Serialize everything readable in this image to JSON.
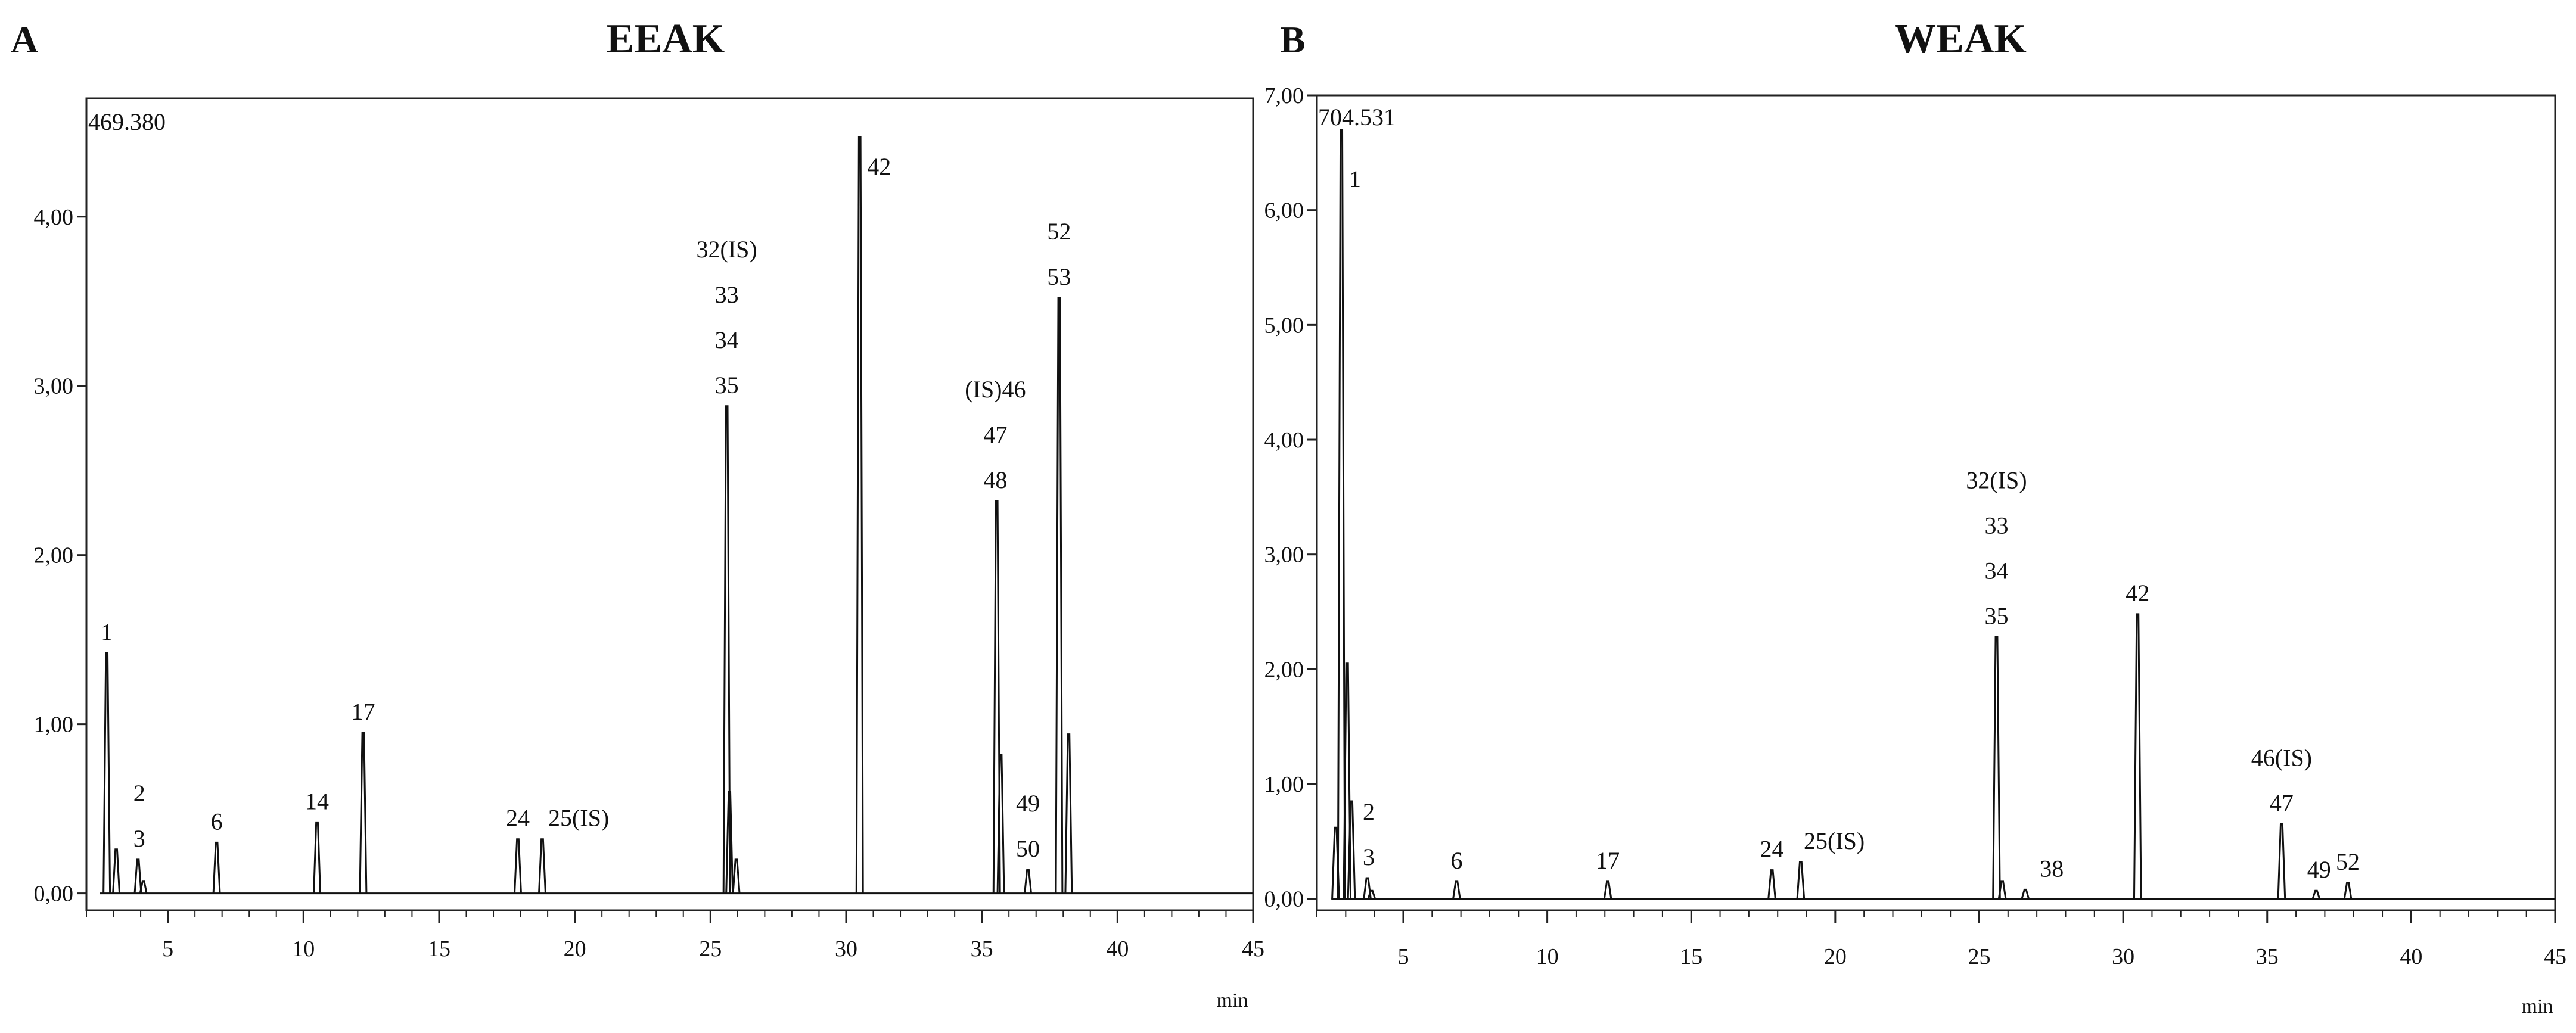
{
  "chart_data": [
    {
      "type": "line",
      "panel_label": "A",
      "title": "EEAK",
      "xlabel": "min",
      "ylabel": "",
      "xlim": [
        2,
        45
      ],
      "ylim": [
        -0.1,
        4.7
      ],
      "x_ticks": [
        "5",
        "10",
        "15",
        "20",
        "25",
        "30",
        "35",
        "40",
        "45"
      ],
      "y_ticks": [
        {
          "value": 0,
          "label": "0,00"
        },
        {
          "value": 1,
          "label": "1,00"
        },
        {
          "value": 2,
          "label": "2,00"
        },
        {
          "value": 3,
          "label": "3,00"
        },
        {
          "value": 4,
          "label": "4,00"
        }
      ],
      "corner_value": "469.380",
      "grid": false,
      "peaks": [
        {
          "x": 2.75,
          "y": 1.42
        },
        {
          "x": 3.1,
          "y": 0.26
        },
        {
          "x": 3.9,
          "y": 0.2
        },
        {
          "x": 4.1,
          "y": 0.07
        },
        {
          "x": 6.8,
          "y": 0.3
        },
        {
          "x": 10.5,
          "y": 0.42
        },
        {
          "x": 12.2,
          "y": 0.95
        },
        {
          "x": 17.9,
          "y": 0.32
        },
        {
          "x": 18.8,
          "y": 0.32
        },
        {
          "x": 25.6,
          "y": 2.88
        },
        {
          "x": 25.7,
          "y": 0.6
        },
        {
          "x": 25.95,
          "y": 0.2
        },
        {
          "x": 30.5,
          "y": 4.47
        },
        {
          "x": 35.55,
          "y": 2.32
        },
        {
          "x": 35.7,
          "y": 0.82
        },
        {
          "x": 36.7,
          "y": 0.14
        },
        {
          "x": 37.85,
          "y": 3.52
        },
        {
          "x": 38.2,
          "y": 0.94
        }
      ],
      "annotations": [
        {
          "x": 2.75,
          "y": 1.42,
          "lines": [
            "1"
          ]
        },
        {
          "x": 3.95,
          "y": 0.2,
          "lines": [
            "2",
            "3"
          ]
        },
        {
          "x": 6.8,
          "y": 0.3,
          "lines": [
            "6"
          ]
        },
        {
          "x": 10.5,
          "y": 0.42,
          "lines": [
            "14"
          ]
        },
        {
          "x": 12.2,
          "y": 0.95,
          "lines": [
            "17"
          ]
        },
        {
          "x": 17.9,
          "y": 0.32,
          "lines": [
            "24"
          ]
        },
        {
          "x": 18.8,
          "y": 0.32,
          "lines": [
            "25(IS)"
          ],
          "anchor": "start"
        },
        {
          "x": 25.6,
          "y": 2.88,
          "lines": [
            "32(IS)",
            "33",
            "34",
            "35"
          ]
        },
        {
          "x": 30.6,
          "y": 4.25,
          "lines": [
            "42"
          ],
          "anchor": "start",
          "side": true
        },
        {
          "x": 35.5,
          "y": 2.32,
          "lines": [
            "(IS)46",
            "47",
            "48"
          ]
        },
        {
          "x": 36.7,
          "y": 0.14,
          "lines": [
            "49",
            "50"
          ]
        },
        {
          "x": 37.85,
          "y": 3.52,
          "lines": [
            "52",
            "53"
          ]
        }
      ]
    },
    {
      "type": "line",
      "panel_label": "B",
      "title": "WEAK",
      "xlabel": "min",
      "ylabel": "",
      "xlim": [
        2,
        45
      ],
      "ylim": [
        -0.1,
        7.0
      ],
      "x_ticks": [
        "5",
        "10",
        "15",
        "20",
        "25",
        "30",
        "35",
        "40",
        "45"
      ],
      "y_ticks": [
        {
          "value": 0,
          "label": "0,00"
        },
        {
          "value": 1,
          "label": "1,00"
        },
        {
          "value": 2,
          "label": "2,00"
        },
        {
          "value": 3,
          "label": "3,00"
        },
        {
          "value": 4,
          "label": "4,00"
        },
        {
          "value": 5,
          "label": "5,00"
        },
        {
          "value": 6,
          "label": "6,00"
        },
        {
          "value": 7,
          "label": "7,00"
        }
      ],
      "corner_value": "704.531",
      "grid": false,
      "peaks": [
        {
          "x": 2.65,
          "y": 0.62
        },
        {
          "x": 2.85,
          "y": 6.7
        },
        {
          "x": 3.05,
          "y": 2.05
        },
        {
          "x": 3.2,
          "y": 0.85
        },
        {
          "x": 3.75,
          "y": 0.18
        },
        {
          "x": 3.9,
          "y": 0.07
        },
        {
          "x": 6.85,
          "y": 0.15
        },
        {
          "x": 12.1,
          "y": 0.15
        },
        {
          "x": 17.8,
          "y": 0.25
        },
        {
          "x": 18.8,
          "y": 0.32
        },
        {
          "x": 25.6,
          "y": 2.28
        },
        {
          "x": 25.8,
          "y": 0.15
        },
        {
          "x": 26.6,
          "y": 0.08
        },
        {
          "x": 30.5,
          "y": 2.48
        },
        {
          "x": 35.5,
          "y": 0.65
        },
        {
          "x": 36.7,
          "y": 0.07
        },
        {
          "x": 37.8,
          "y": 0.14
        }
      ],
      "annotations": [
        {
          "x": 2.95,
          "y": 6.2,
          "lines": [
            "1"
          ],
          "anchor": "start",
          "side": true
        },
        {
          "x": 3.8,
          "y": 0.18,
          "lines": [
            "2",
            "3"
          ]
        },
        {
          "x": 6.85,
          "y": 0.15,
          "lines": [
            "6"
          ]
        },
        {
          "x": 12.1,
          "y": 0.15,
          "lines": [
            "17"
          ]
        },
        {
          "x": 17.8,
          "y": 0.25,
          "lines": [
            "24"
          ]
        },
        {
          "x": 18.7,
          "y": 0.32,
          "lines": [
            "25(IS)"
          ],
          "anchor": "start"
        },
        {
          "x": 25.6,
          "y": 2.28,
          "lines": [
            "32(IS)",
            "33",
            "34",
            "35"
          ]
        },
        {
          "x": 26.9,
          "y": 0.08,
          "lines": [
            "38"
          ],
          "anchor": "start"
        },
        {
          "x": 30.5,
          "y": 2.48,
          "lines": [
            "42"
          ]
        },
        {
          "x": 35.5,
          "y": 0.65,
          "lines": [
            "46(IS)",
            "47"
          ]
        },
        {
          "x": 36.8,
          "y": 0.07,
          "lines": [
            "49"
          ]
        },
        {
          "x": 37.8,
          "y": 0.14,
          "lines": [
            "52"
          ]
        }
      ]
    }
  ]
}
